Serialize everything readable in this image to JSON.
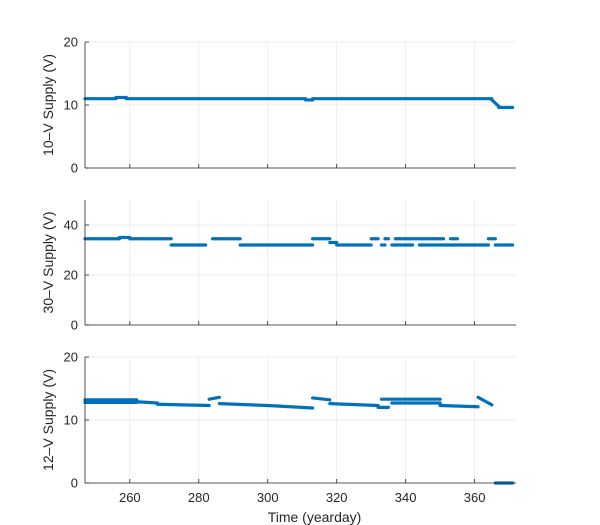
{
  "chart_data": [
    {
      "type": "scatter",
      "ylabel": "10–V Supply (V)",
      "xlim": [
        247,
        372
      ],
      "ylim": [
        0,
        20
      ],
      "yticks": [
        0,
        10,
        20
      ],
      "xticks": [
        260,
        280,
        300,
        320,
        340,
        360
      ],
      "grid": true,
      "color": "#0072BD",
      "segments": [
        {
          "x": [
            247,
            256
          ],
          "y": [
            11.0,
            11.0
          ]
        },
        {
          "x": [
            256,
            259
          ],
          "y": [
            11.2,
            11.2
          ]
        },
        {
          "x": [
            259,
            311
          ],
          "y": [
            11.0,
            11.0
          ]
        },
        {
          "x": [
            311,
            313
          ],
          "y": [
            10.8,
            10.8
          ]
        },
        {
          "x": [
            313,
            365
          ],
          "y": [
            11.0,
            11.0
          ]
        },
        {
          "x": [
            365,
            367
          ],
          "y": [
            10.8,
            9.8
          ]
        },
        {
          "x": [
            367,
            371
          ],
          "y": [
            9.6,
            9.6
          ]
        }
      ]
    },
    {
      "type": "scatter",
      "ylabel": "30–V Supply (V)",
      "xlim": [
        247,
        372
      ],
      "ylim": [
        0,
        50
      ],
      "yticks": [
        0,
        20,
        40
      ],
      "xticks": [
        260,
        280,
        300,
        320,
        340,
        360
      ],
      "grid": true,
      "color": "#0072BD",
      "segments": [
        {
          "x": [
            247,
            257
          ],
          "y": [
            34.5,
            34.5
          ]
        },
        {
          "x": [
            257,
            260
          ],
          "y": [
            35.0,
            35.0
          ]
        },
        {
          "x": [
            260,
            272
          ],
          "y": [
            34.5,
            34.5
          ]
        },
        {
          "x": [
            272,
            282
          ],
          "y": [
            32.0,
            32.0
          ]
        },
        {
          "x": [
            284,
            292
          ],
          "y": [
            34.5,
            34.5
          ]
        },
        {
          "x": [
            292,
            313
          ],
          "y": [
            32.0,
            32.0
          ]
        },
        {
          "x": [
            313,
            318
          ],
          "y": [
            34.5,
            34.5
          ]
        },
        {
          "x": [
            318,
            320
          ],
          "y": [
            33.0,
            33.0
          ]
        },
        {
          "x": [
            320,
            330
          ],
          "y": [
            32.0,
            32.0
          ]
        },
        {
          "x": [
            330,
            332
          ],
          "y": [
            34.5,
            34.5
          ]
        },
        {
          "x": [
            333,
            334
          ],
          "y": [
            32.0,
            32.0
          ]
        },
        {
          "x": [
            334,
            335
          ],
          "y": [
            34.5,
            34.5
          ]
        },
        {
          "x": [
            336,
            342
          ],
          "y": [
            32.0,
            32.0
          ]
        },
        {
          "x": [
            337,
            351
          ],
          "y": [
            34.5,
            34.5
          ]
        },
        {
          "x": [
            344,
            364
          ],
          "y": [
            32.0,
            32.0
          ]
        },
        {
          "x": [
            353,
            355
          ],
          "y": [
            34.5,
            34.5
          ]
        },
        {
          "x": [
            364,
            366
          ],
          "y": [
            34.5,
            34.5
          ]
        },
        {
          "x": [
            366,
            371
          ],
          "y": [
            32.0,
            32.0
          ]
        }
      ]
    },
    {
      "type": "scatter",
      "ylabel": "12–V Supply (V)",
      "xlabel": "Time (yearday)",
      "xlim": [
        247,
        372
      ],
      "ylim": [
        0,
        20
      ],
      "yticks": [
        0,
        10,
        20
      ],
      "xticks": [
        260,
        280,
        300,
        320,
        340,
        360
      ],
      "xticklabels": [
        "260",
        "280",
        "300",
        "320",
        "340",
        "360"
      ],
      "grid": true,
      "color": "#0072BD",
      "segments": [
        {
          "x": [
            247,
            262
          ],
          "y": [
            13.2,
            13.2
          ]
        },
        {
          "x": [
            247,
            262
          ],
          "y": [
            12.8,
            12.8
          ]
        },
        {
          "x": [
            262,
            268
          ],
          "y": [
            12.9,
            12.7
          ]
        },
        {
          "x": [
            268,
            283
          ],
          "y": [
            12.5,
            12.3
          ]
        },
        {
          "x": [
            283,
            286
          ],
          "y": [
            13.3,
            13.6
          ]
        },
        {
          "x": [
            286,
            300
          ],
          "y": [
            12.6,
            12.3
          ]
        },
        {
          "x": [
            300,
            313
          ],
          "y": [
            12.3,
            11.9
          ]
        },
        {
          "x": [
            313,
            318
          ],
          "y": [
            13.5,
            13.2
          ]
        },
        {
          "x": [
            318,
            332
          ],
          "y": [
            12.6,
            12.3
          ]
        },
        {
          "x": [
            332,
            335
          ],
          "y": [
            12.0,
            12.0
          ]
        },
        {
          "x": [
            333,
            350
          ],
          "y": [
            13.3,
            13.3
          ]
        },
        {
          "x": [
            336,
            350
          ],
          "y": [
            12.7,
            12.7
          ]
        },
        {
          "x": [
            350,
            361
          ],
          "y": [
            12.3,
            12.1
          ]
        },
        {
          "x": [
            361,
            365
          ],
          "y": [
            13.6,
            12.4
          ]
        },
        {
          "x": [
            366,
            371
          ],
          "y": [
            0.0,
            0.0
          ]
        }
      ]
    }
  ]
}
